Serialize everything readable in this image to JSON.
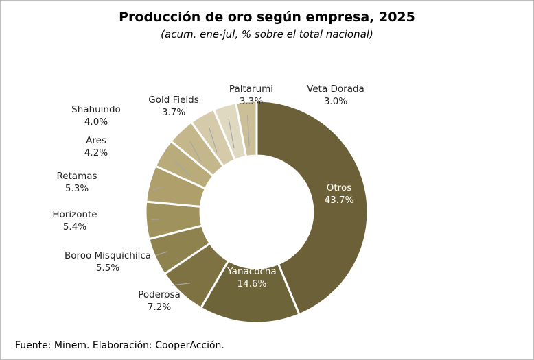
{
  "title": "Producción  de oro según empresa, 2025",
  "subtitle": "(acum. ene-jul, % sobre el total nacional)",
  "source": "Fuente: Minem. Elaboración: CooperAcción.",
  "chart_data": {
    "type": "pie",
    "variant": "donut",
    "unit": "%",
    "slices": [
      {
        "name": "Otros",
        "value": 43.7,
        "label": "43.7%",
        "color": "#6b6037",
        "label_inside": true
      },
      {
        "name": "Yanacocha",
        "value": 14.6,
        "label": "14.6%",
        "color": "#6e643a",
        "label_inside": true
      },
      {
        "name": "Poderosa",
        "value": 7.2,
        "label": "7.2%",
        "color": "#7e7243",
        "label_inside": false
      },
      {
        "name": "Boroo Misquichilca",
        "value": 5.5,
        "label": "5.5%",
        "color": "#8e824f",
        "label_inside": false
      },
      {
        "name": "Horizonte",
        "value": 5.4,
        "label": "5.4%",
        "color": "#a0925d",
        "label_inside": false
      },
      {
        "name": "Retamas",
        "value": 5.3,
        "label": "5.3%",
        "color": "#ae9f6b",
        "label_inside": false
      },
      {
        "name": "Ares",
        "value": 4.2,
        "label": "4.2%",
        "color": "#baab7b",
        "label_inside": false
      },
      {
        "name": "Shahuindo",
        "value": 4.0,
        "label": "4.0%",
        "color": "#c5b78c",
        "label_inside": false
      },
      {
        "name": "Gold Fields",
        "value": 3.7,
        "label": "3.7%",
        "color": "#d5cbab",
        "label_inside": false
      },
      {
        "name": "Paltarumi",
        "value": 3.3,
        "label": "3.3%",
        "color": "#e0d9c1",
        "label_inside": false
      },
      {
        "name": "Veta Dorada",
        "value": 3.0,
        "label": "3.0%",
        "color": "#cbbf98",
        "label_inside": false
      }
    ]
  }
}
